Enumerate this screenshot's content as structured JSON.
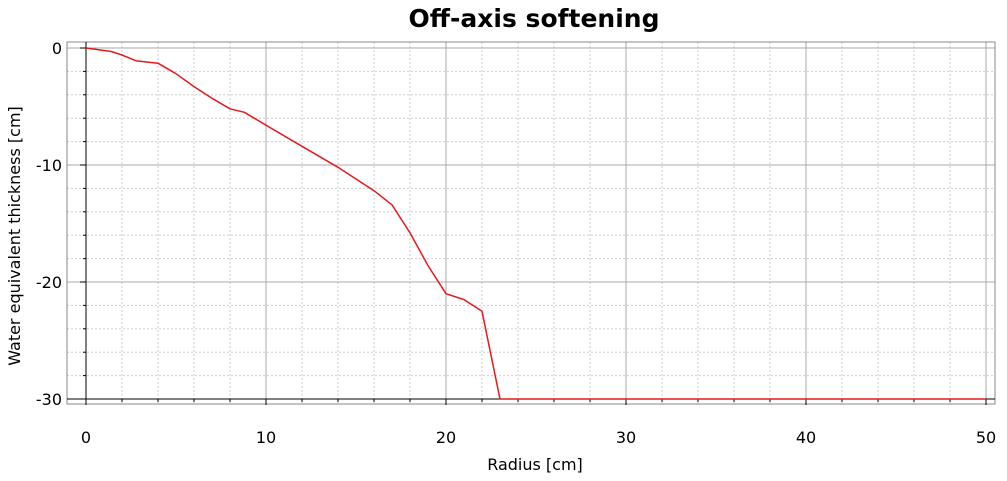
{
  "chart_data": {
    "type": "line",
    "title": "Off-axis softening",
    "xlabel": "Radius [cm]",
    "ylabel": "Water equivalent thickness [cm]",
    "xlim": [
      0,
      50
    ],
    "ylim": [
      -30,
      0
    ],
    "xticks": [
      0,
      10,
      20,
      30,
      40,
      50
    ],
    "yticks": [
      0,
      -10,
      -20,
      -30
    ],
    "xtick_labels": [
      "0",
      "10",
      "20",
      "30",
      "40",
      "50"
    ],
    "ytick_labels": [
      "0",
      "-10",
      "-20",
      "-30"
    ],
    "grid": true,
    "minor_grid": true,
    "series": [
      {
        "color": "#e41a1c",
        "x": [
          0,
          1.4,
          2,
          2.8,
          4,
          5,
          6,
          7,
          8,
          8.8,
          10,
          12,
          14,
          16,
          17,
          18,
          19,
          20,
          21,
          22,
          23,
          23.5,
          30,
          40,
          50
        ],
        "y": [
          0,
          -0.3,
          -0.6,
          -1.1,
          -1.3,
          -2.2,
          -3.3,
          -4.3,
          -5.2,
          -5.5,
          -6.6,
          -8.4,
          -10.2,
          -12.2,
          -13.4,
          -15.8,
          -18.6,
          -21.0,
          -21.5,
          -22.5,
          -30,
          -30,
          -30,
          -30,
          -30
        ]
      }
    ]
  }
}
